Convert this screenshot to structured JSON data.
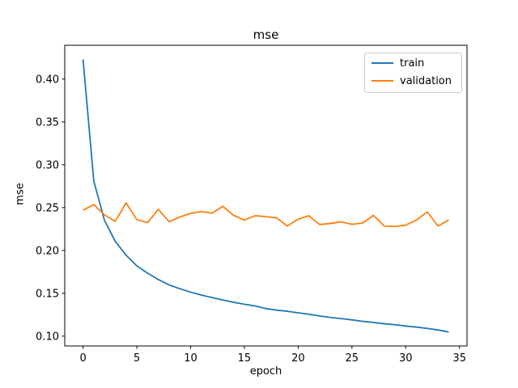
{
  "figure": {
    "background": "#ffffff",
    "axis_color": "#000000",
    "text_color": "#000000",
    "legend_border_color": "#cccccc"
  },
  "chart_data": {
    "type": "line",
    "title": "mse",
    "xlabel": "epoch",
    "ylabel": "mse",
    "x": [
      0,
      1,
      2,
      3,
      4,
      5,
      6,
      7,
      8,
      9,
      10,
      11,
      12,
      13,
      14,
      15,
      16,
      17,
      18,
      19,
      20,
      21,
      22,
      23,
      24,
      25,
      26,
      27,
      28,
      29,
      30,
      31,
      32,
      33,
      34
    ],
    "series": [
      {
        "name": "train",
        "color": "#1f77b4",
        "values": [
          0.423,
          0.281,
          0.235,
          0.2105,
          0.1945,
          0.182,
          0.1735,
          0.166,
          0.1598,
          0.1553,
          0.1513,
          0.1479,
          0.145,
          0.1422,
          0.1394,
          0.1372,
          0.1352,
          0.1322,
          0.1303,
          0.129,
          0.1272,
          0.1255,
          0.1235,
          0.1218,
          0.1205,
          0.119,
          0.1172,
          0.116,
          0.1145,
          0.1133,
          0.1118,
          0.1105,
          0.109,
          0.1072,
          0.1048
        ]
      },
      {
        "name": "validation",
        "color": "#ff7f0e",
        "values": [
          0.247,
          0.2535,
          0.2415,
          0.234,
          0.2555,
          0.236,
          0.2325,
          0.248,
          0.2335,
          0.239,
          0.2432,
          0.2455,
          0.2435,
          0.2515,
          0.241,
          0.2355,
          0.2405,
          0.2395,
          0.238,
          0.2285,
          0.2365,
          0.2405,
          0.2302,
          0.2315,
          0.2335,
          0.2305,
          0.232,
          0.241,
          0.2285,
          0.228,
          0.2295,
          0.2355,
          0.245,
          0.2285,
          0.2355
        ]
      }
    ],
    "xlim": [
      -1.7,
      35.7
    ],
    "ylim": [
      0.0885,
      0.4395
    ],
    "xticks": [
      0,
      5,
      10,
      15,
      20,
      25,
      30,
      35
    ],
    "xtick_labels": [
      "0",
      "5",
      "10",
      "15",
      "20",
      "25",
      "30",
      "35"
    ],
    "yticks": [
      0.1,
      0.15,
      0.2,
      0.25,
      0.3,
      0.35,
      0.4
    ],
    "ytick_labels": [
      "0.10",
      "0.15",
      "0.20",
      "0.25",
      "0.30",
      "0.35",
      "0.40"
    ],
    "grid": false,
    "legend": {
      "position": "upper right",
      "entries": [
        "train",
        "validation"
      ]
    }
  }
}
